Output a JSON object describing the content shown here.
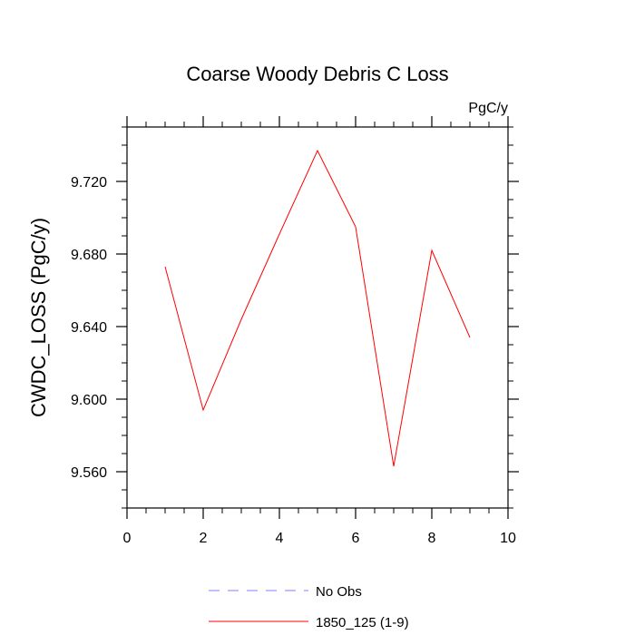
{
  "chart_data": {
    "type": "line",
    "title": "Coarse Woody Debris C Loss",
    "units": "PgC/y",
    "xlabel": "",
    "ylabel": "CWDC_LOSS  (PgC/y)",
    "xlim": [
      0,
      10
    ],
    "ylim": [
      9.54,
      9.75
    ],
    "x_ticks": [
      0,
      2,
      4,
      6,
      8,
      10
    ],
    "x_tick_labels": [
      "0",
      "2",
      "4",
      "6",
      "8",
      "10"
    ],
    "y_ticks": [
      9.56,
      9.6,
      9.64,
      9.68,
      9.72
    ],
    "y_tick_labels": [
      "9.560",
      "9.600",
      "9.640",
      "9.680",
      "9.720"
    ],
    "grid": false,
    "legend_position": "bottom",
    "series": [
      {
        "name": "No Obs",
        "color": "#8080ff",
        "dash": "dashed",
        "x": [],
        "y": []
      },
      {
        "name": "1850_125 (1-9)",
        "color": "#ff0000",
        "dash": "solid",
        "x": [
          1,
          2,
          3,
          4,
          5,
          6,
          7,
          8,
          9
        ],
        "y": [
          9.673,
          9.594,
          9.644,
          9.691,
          9.737,
          9.695,
          9.563,
          9.682,
          9.634
        ]
      }
    ]
  }
}
